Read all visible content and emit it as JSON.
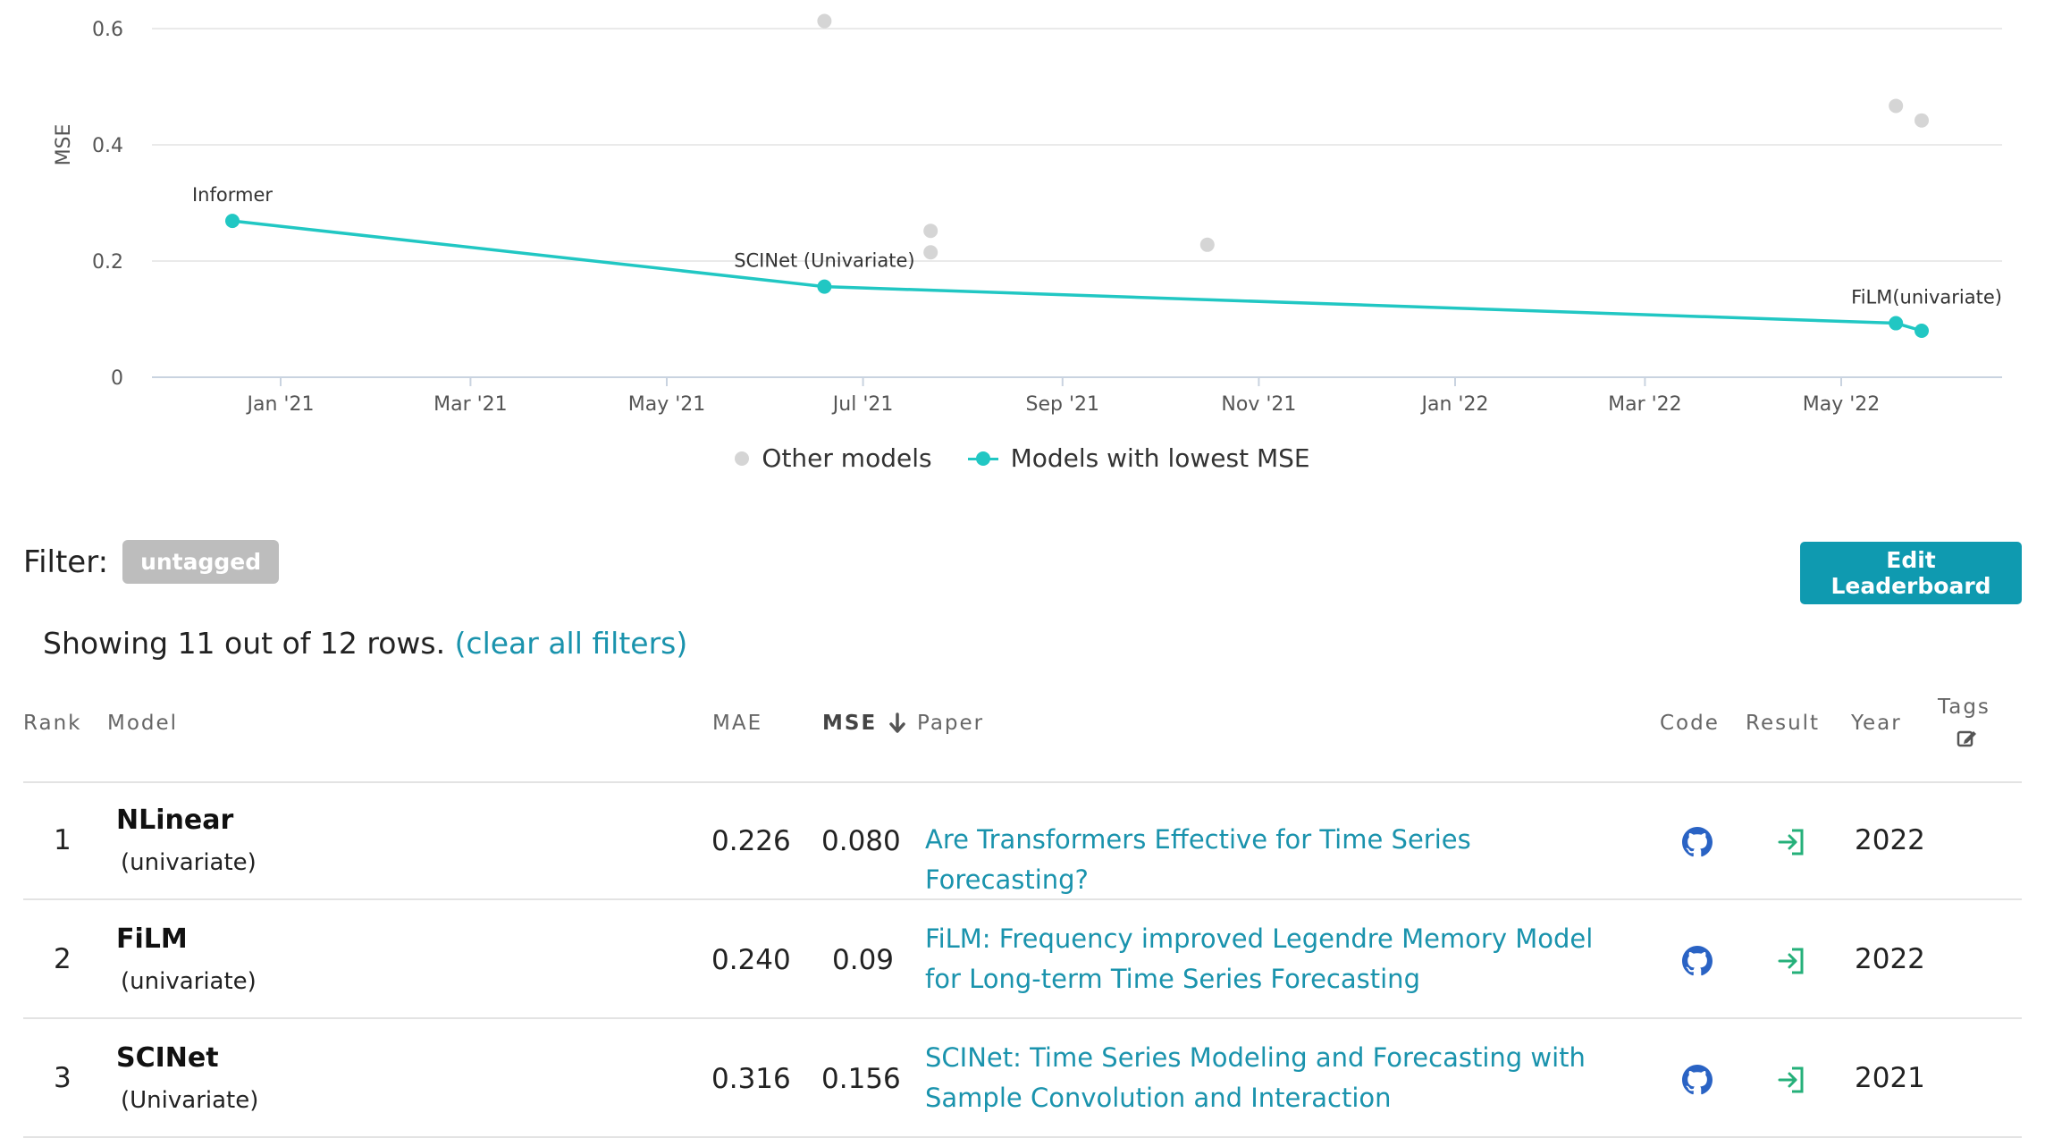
{
  "chart_data": {
    "type": "scatter",
    "ylabel": "MSE",
    "ylim": [
      0,
      0.6
    ],
    "yticks": [
      0,
      0.2,
      0.4,
      0.6
    ],
    "yticklabels": [
      "0",
      "0.2",
      "0.4",
      "0.6"
    ],
    "xlim": [
      "2020-11-22",
      "2022-06-20"
    ],
    "xticks": [
      "2021-01-01",
      "2021-03-01",
      "2021-05-01",
      "2021-07-01",
      "2021-09-01",
      "2021-11-01",
      "2022-01-01",
      "2022-03-01",
      "2022-05-01"
    ],
    "xticklabels": [
      "Jan '21",
      "Mar '21",
      "May '21",
      "Jul '21",
      "Sep '21",
      "Nov '21",
      "Jan '22",
      "Mar '22",
      "May '22"
    ],
    "grid": "horizontal",
    "legend_position": "bottom",
    "series": [
      {
        "name": "Other models",
        "color": "#d5d5d5",
        "points": [
          {
            "x": "2021-06-19",
            "y": 0.613
          },
          {
            "x": "2021-07-22",
            "y": 0.252
          },
          {
            "x": "2021-07-22",
            "y": 0.215
          },
          {
            "x": "2021-10-16",
            "y": 0.228
          },
          {
            "x": "2022-05-18",
            "y": 0.467
          },
          {
            "x": "2022-05-26",
            "y": 0.442
          }
        ]
      },
      {
        "name": "Models with lowest MSE",
        "color": "#21c7c3",
        "points": [
          {
            "x": "2020-12-17",
            "y": 0.269,
            "label": "Informer"
          },
          {
            "x": "2021-06-19",
            "y": 0.156,
            "label": "SCINet (Univariate)"
          },
          {
            "x": "2022-05-18",
            "y": 0.093,
            "label": "FiLM(univariate)"
          },
          {
            "x": "2022-05-26",
            "y": 0.08,
            "label": ""
          }
        ]
      }
    ]
  },
  "filter": {
    "label": "Filter:",
    "tag": "untagged"
  },
  "edit_button": "Edit Leaderboard",
  "showing": {
    "text": "Showing 11 out of 12 rows.",
    "clear": "(clear all filters)"
  },
  "table": {
    "headers": {
      "rank": "Rank",
      "model": "Model",
      "mae": "MAE",
      "mse": "MSE",
      "paper": "Paper",
      "code": "Code",
      "result": "Result",
      "year": "Year",
      "tags": "Tags"
    },
    "rows": [
      {
        "rank": "1",
        "model": "NLinear",
        "variant": "(univariate)",
        "mae": "0.226",
        "mse": "0.080",
        "paper": "Are Transformers Effective for Time Series Forecasting?",
        "year": "2022"
      },
      {
        "rank": "2",
        "model": "FiLM",
        "variant": "(univariate)",
        "mae": "0.240",
        "mse": "0.09",
        "paper": "FiLM: Frequency improved Legendre Memory Model for Long-term Time Series Forecasting",
        "year": "2022"
      },
      {
        "rank": "3",
        "model": "SCINet",
        "variant": "(Univariate)",
        "mae": "0.316",
        "mse": "0.156",
        "paper": "SCINet: Time Series Modeling and Forecasting with Sample Convolution and Interaction",
        "year": "2021"
      }
    ]
  },
  "icons": {
    "sort": "arrow-down-icon",
    "tags_edit": "edit-icon",
    "code": "github-icon",
    "result": "sign-in-icon"
  },
  "colors": {
    "accent": "#21c7c3",
    "link": "#1a93ad",
    "button": "#0f9ab0",
    "github": "#2a63c4",
    "result": "#25b07a"
  }
}
